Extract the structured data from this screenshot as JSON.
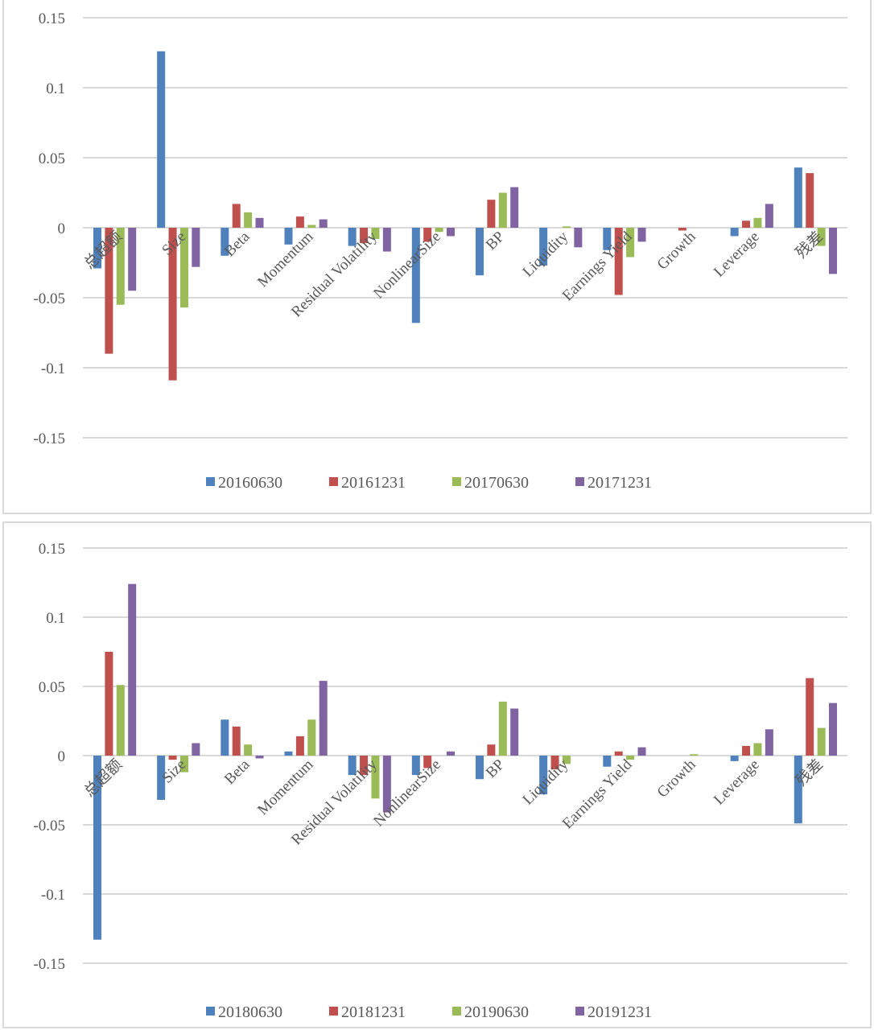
{
  "chart_data": [
    {
      "type": "bar",
      "title": "",
      "xlabel": "",
      "ylabel": "",
      "ylim": [
        -0.15,
        0.15
      ],
      "yticks": [
        0.15,
        0.1,
        0.05,
        0,
        -0.05,
        -0.1,
        -0.15
      ],
      "ytick_labels": [
        "0.15",
        "0.1",
        "0.05",
        "0",
        "-0.05",
        "-0.1",
        "-0.15"
      ],
      "grid": true,
      "legend_position": "bottom",
      "categories": [
        "总超额",
        "Size",
        "Beta",
        "Momentum",
        "Residual Volatility",
        "NonlinearSize",
        "BP",
        "Liquidity",
        "Earnings Yield",
        "Growth",
        "Leverage",
        "残差"
      ],
      "series": [
        {
          "name": "20160630",
          "color": "#4f81bd",
          "values": [
            -0.029,
            0.126,
            -0.02,
            -0.012,
            -0.013,
            -0.068,
            -0.034,
            -0.027,
            -0.016,
            0.0,
            -0.006,
            0.043
          ]
        },
        {
          "name": "20161231",
          "color": "#c0504d",
          "values": [
            -0.09,
            -0.109,
            0.017,
            0.008,
            -0.011,
            -0.01,
            0.02,
            0.0,
            -0.048,
            -0.002,
            0.005,
            0.039
          ]
        },
        {
          "name": "20170630",
          "color": "#9bbb59",
          "values": [
            -0.055,
            -0.057,
            0.011,
            0.002,
            -0.008,
            -0.003,
            0.025,
            0.001,
            -0.021,
            0.0,
            0.007,
            -0.013
          ]
        },
        {
          "name": "20171231",
          "color": "#8064a2",
          "values": [
            -0.045,
            -0.028,
            0.007,
            0.006,
            -0.017,
            -0.006,
            0.029,
            -0.014,
            -0.01,
            0.0,
            0.017,
            -0.033
          ]
        }
      ]
    },
    {
      "type": "bar",
      "title": "",
      "xlabel": "",
      "ylabel": "",
      "ylim": [
        -0.15,
        0.15
      ],
      "yticks": [
        0.15,
        0.1,
        0.05,
        0,
        -0.05,
        -0.1,
        -0.15
      ],
      "ytick_labels": [
        "0.15",
        "0.1",
        "0.05",
        "0",
        "-0.05",
        "-0.1",
        "-0.15"
      ],
      "grid": true,
      "legend_position": "bottom",
      "categories": [
        "总超额",
        "Size",
        "Beta",
        "Momentum",
        "Residual Volatility",
        "NonlinearSize",
        "BP",
        "Liquidity",
        "Earnings Yield",
        "Growth",
        "Leverage",
        "残差"
      ],
      "series": [
        {
          "name": "20180630",
          "color": "#4f81bd",
          "values": [
            -0.133,
            -0.032,
            0.026,
            0.003,
            -0.014,
            -0.014,
            -0.017,
            -0.028,
            -0.008,
            0.0,
            -0.004,
            -0.049
          ]
        },
        {
          "name": "20181231",
          "color": "#c0504d",
          "values": [
            0.075,
            -0.003,
            0.021,
            0.014,
            -0.014,
            -0.009,
            0.008,
            -0.01,
            0.003,
            0.0,
            0.007,
            0.056
          ]
        },
        {
          "name": "20190630",
          "color": "#9bbb59",
          "values": [
            0.051,
            -0.012,
            0.008,
            0.026,
            -0.031,
            0.0,
            0.039,
            -0.006,
            -0.003,
            0.001,
            0.009,
            0.02
          ]
        },
        {
          "name": "20191231",
          "color": "#8064a2",
          "values": [
            0.124,
            0.009,
            -0.002,
            0.054,
            -0.041,
            0.003,
            0.034,
            0.0,
            0.006,
            0.0,
            0.019,
            0.038
          ]
        }
      ]
    }
  ]
}
